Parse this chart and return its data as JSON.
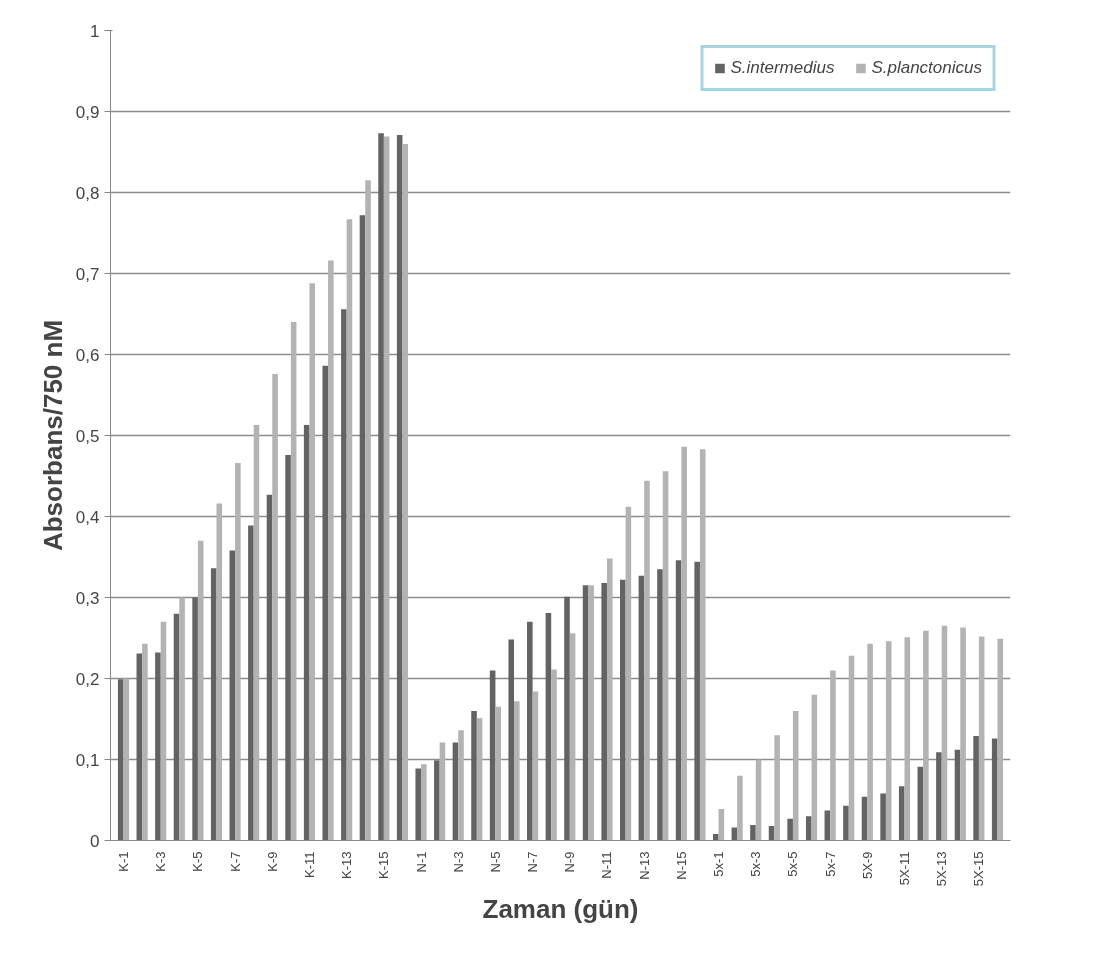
{
  "chart_data": {
    "type": "bar",
    "xlabel": "Zaman (gün)",
    "ylabel": "Absorbans/750 nM",
    "categories": [
      "K-1",
      null,
      "K-3",
      null,
      "K-5",
      null,
      "K-7",
      null,
      "K-9",
      null,
      "K-11",
      null,
      "K-13",
      null,
      "K-15",
      null,
      "N-1",
      null,
      "N-3",
      null,
      "N-5",
      null,
      "N-7",
      null,
      "N-9",
      null,
      "N-11",
      null,
      "N-13",
      null,
      "N-15",
      null,
      "5x-1",
      null,
      "5x-3",
      null,
      "5x-5",
      null,
      "5x-7",
      null,
      "5X-9",
      null,
      "5X-11",
      null,
      "5X-13",
      null,
      "5X-15",
      null
    ],
    "series": [
      {
        "name": "S.intermedius",
        "color": "#636363",
        "values": [
          0.199,
          0.231,
          0.232,
          0.28,
          0.3,
          0.336,
          0.358,
          0.389,
          0.427,
          0.476,
          0.513,
          0.586,
          0.656,
          0.772,
          0.873,
          0.871,
          0.089,
          0.099,
          0.121,
          0.16,
          0.21,
          0.248,
          0.27,
          0.281,
          0.301,
          0.315,
          0.318,
          0.322,
          0.327,
          0.335,
          0.346,
          0.344,
          0.008,
          0.016,
          0.019,
          0.018,
          0.027,
          0.03,
          0.037,
          0.043,
          0.054,
          0.058,
          0.067,
          0.091,
          0.109,
          0.112,
          0.129,
          0.126
        ]
      },
      {
        "name": "S.planctonicus",
        "color": "#b3b3b3",
        "values": [
          0.2,
          0.243,
          0.27,
          0.3,
          0.37,
          0.416,
          0.466,
          0.513,
          0.576,
          0.64,
          0.688,
          0.716,
          0.767,
          0.815,
          0.869,
          0.86,
          0.094,
          0.121,
          0.136,
          0.151,
          0.165,
          0.172,
          0.184,
          0.211,
          0.256,
          0.315,
          0.348,
          0.412,
          0.444,
          0.456,
          0.486,
          0.483,
          0.039,
          0.08,
          0.1,
          0.13,
          0.16,
          0.18,
          0.21,
          0.228,
          0.243,
          0.246,
          0.251,
          0.259,
          0.265,
          0.263,
          0.252,
          0.249
        ]
      }
    ],
    "ylim": [
      0,
      1
    ],
    "yticks": [
      0,
      {
        "value": 0.1,
        "label": "0,1"
      },
      {
        "value": 0.2,
        "label": "0,2"
      },
      {
        "value": 0.3,
        "label": "0,3"
      },
      {
        "value": 0.4,
        "label": "0,4"
      },
      {
        "value": 0.5,
        "label": "0,5"
      },
      {
        "value": 0.6,
        "label": "0,6"
      },
      {
        "value": 0.7,
        "label": "0,7"
      },
      {
        "value": 0.8,
        "label": "0,8"
      },
      {
        "value": 0.9,
        "label": "0,9"
      },
      1
    ],
    "grid": "y",
    "legend": "top right"
  }
}
